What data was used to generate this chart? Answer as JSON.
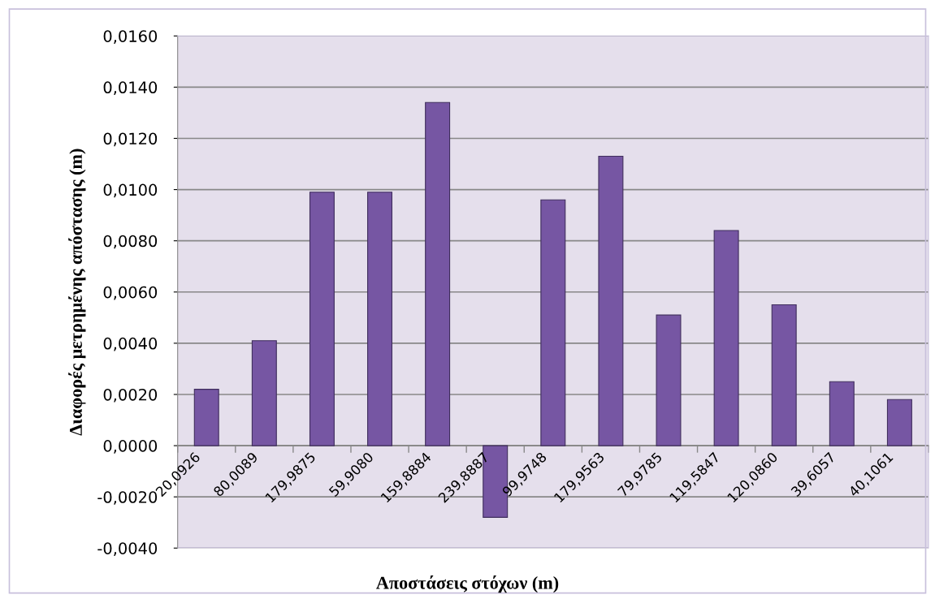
{
  "chart_data": {
    "type": "bar",
    "xlabel": "Αποστάσεις στόχων (m)",
    "ylabel": "Διαφορές μετρημένης απόστασης (m)",
    "categories": [
      "20,0926",
      "80,0089",
      "179,9875",
      "59,9080",
      "159,8884",
      "239,8887",
      "99,9748",
      "179,9563",
      "79,9785",
      "119,5847",
      "120,0860",
      "39,6057",
      "40,1061"
    ],
    "values": [
      0.0022,
      0.0041,
      0.0099,
      0.0099,
      0.0134,
      -0.0028,
      0.0096,
      0.0113,
      0.0051,
      0.0084,
      0.0055,
      0.0025,
      0.0018
    ],
    "color": "#7656a3",
    "ylim": [
      -0.004,
      0.016
    ],
    "yticks": [
      {
        "value": -0.004,
        "label": "-0,0040"
      },
      {
        "value": -0.002,
        "label": "-0,0020"
      },
      {
        "value": 0,
        "label": "0,0000"
      },
      {
        "value": 0.002,
        "label": "0,0020"
      },
      {
        "value": 0.004,
        "label": "0,0040"
      },
      {
        "value": 0.006,
        "label": "0,0060"
      },
      {
        "value": 0.008,
        "label": "0,0080"
      },
      {
        "value": 0.01,
        "label": "0,0100"
      },
      {
        "value": 0.012,
        "label": "0,0120"
      },
      {
        "value": 0.014,
        "label": "0,0140"
      },
      {
        "value": 0.016,
        "label": "0,0160"
      }
    ],
    "grid": "y"
  }
}
